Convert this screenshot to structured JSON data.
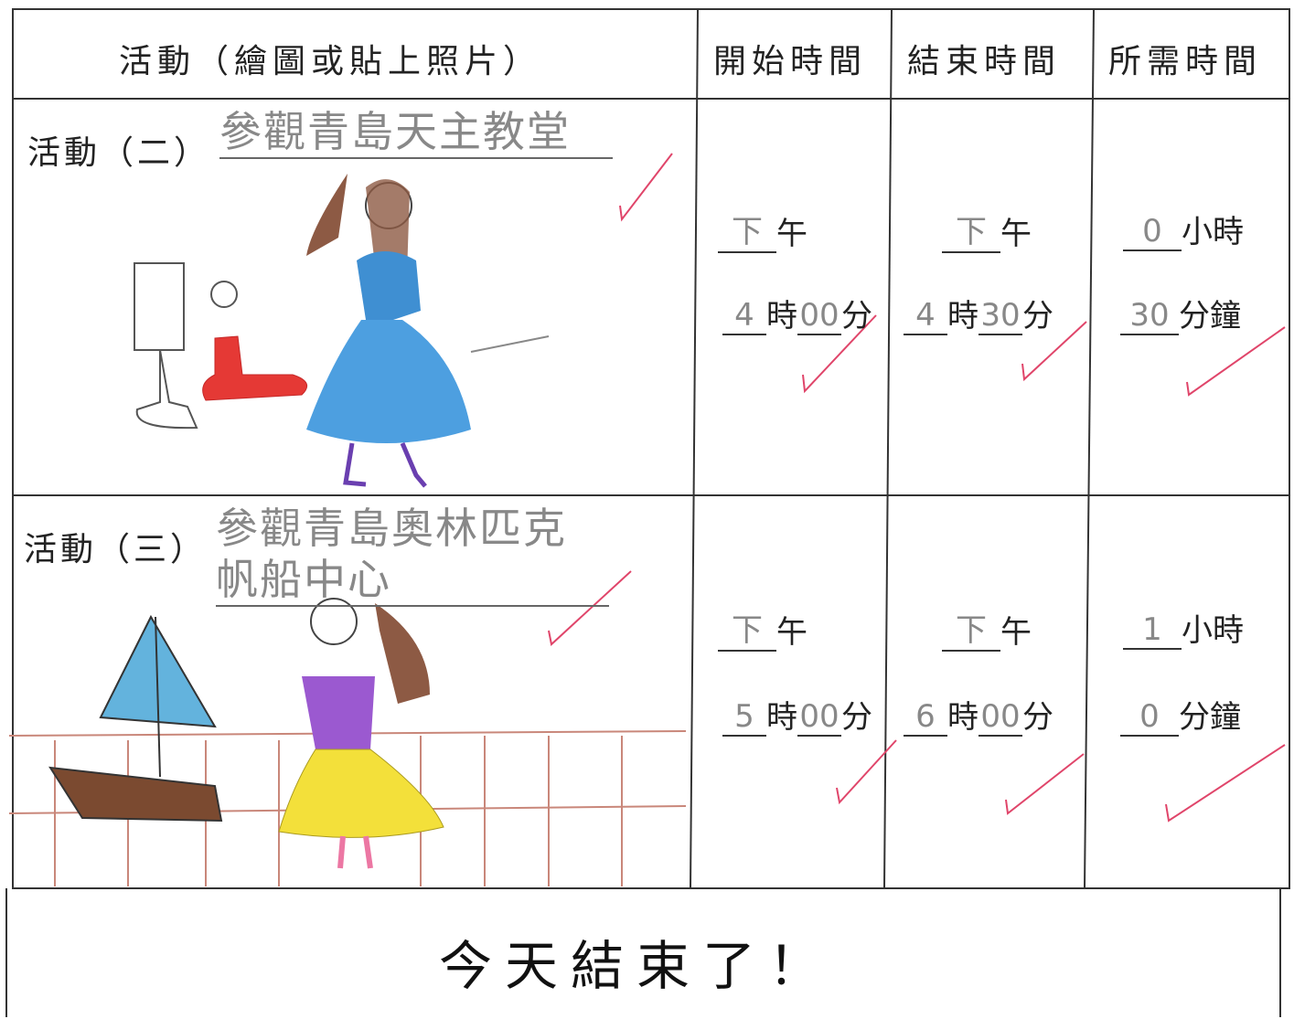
{
  "header": {
    "activity": "活動（繪圖或貼上照片）",
    "start": "開始時間",
    "end": "結束時間",
    "duration": "所需時間"
  },
  "units": {
    "noon": "午",
    "hour": "時",
    "minute": "分",
    "hours": "小時",
    "minutes": "分鐘"
  },
  "rows": [
    {
      "label": "活動（二）",
      "activity": "參觀青島天主教堂",
      "start": {
        "period": "下",
        "hour": "4",
        "minute": "00"
      },
      "end": {
        "period": "下",
        "hour": "4",
        "minute": "30"
      },
      "duration": {
        "hours": "0",
        "minutes": "30"
      }
    },
    {
      "label": "活動（三）",
      "activity": "參觀青島奧林匹克帆船中心",
      "start": {
        "period": "下",
        "hour": "5",
        "minute": "00"
      },
      "end": {
        "period": "下",
        "hour": "6",
        "minute": "00"
      },
      "duration": {
        "hours": "1",
        "minutes": "0"
      }
    }
  ],
  "footer": "今天結束了！"
}
